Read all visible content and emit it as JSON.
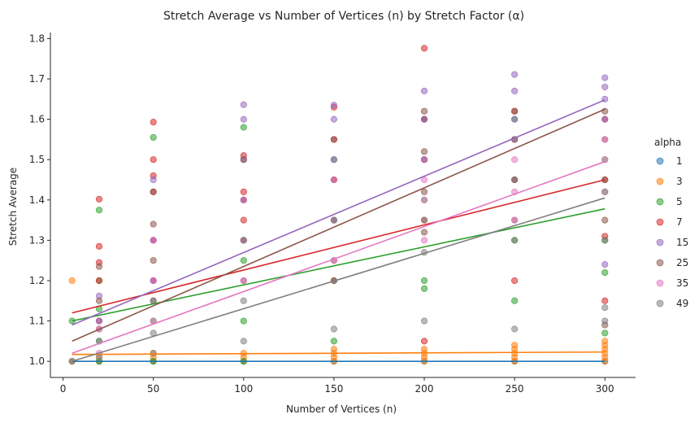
{
  "chart_data": {
    "type": "scatter",
    "title": "Stretch Average vs Number of Vertices (n) by Stretch Factor (α)",
    "xlabel": "Number of Vertices (n)",
    "ylabel": "Stretch Average",
    "xlim": [
      -7,
      317
    ],
    "ylim": [
      0.96,
      1.815
    ],
    "xticks": [
      0,
      50,
      100,
      150,
      200,
      250,
      300
    ],
    "yticks": [
      1.0,
      1.1,
      1.2,
      1.3,
      1.4,
      1.5,
      1.6,
      1.7,
      1.8
    ],
    "grid": false,
    "legend_title": "alpha",
    "legend_position": "right",
    "x_values": [
      5,
      20,
      50,
      100,
      150,
      200,
      250,
      300
    ],
    "series": [
      {
        "name": "1",
        "color": "#1f77b4",
        "fit": [
          1.0,
          1.0
        ],
        "points": [
          [
            5,
            1.0
          ],
          [
            20,
            1.0
          ],
          [
            50,
            1.0
          ],
          [
            100,
            1.0
          ],
          [
            150,
            1.0
          ],
          [
            200,
            1.0
          ],
          [
            250,
            1.0
          ],
          [
            300,
            1.0
          ]
        ]
      },
      {
        "name": "3",
        "color": "#ff7f0e",
        "fit": [
          1.017,
          1.023
        ],
        "points": [
          [
            5,
            1.2
          ],
          [
            5,
            1.0
          ],
          [
            20,
            1.0
          ],
          [
            20,
            1.01
          ],
          [
            50,
            1.0
          ],
          [
            50,
            1.01
          ],
          [
            50,
            1.02
          ],
          [
            100,
            1.0
          ],
          [
            100,
            1.01
          ],
          [
            100,
            1.02
          ],
          [
            150,
            1.0
          ],
          [
            150,
            1.01
          ],
          [
            150,
            1.02
          ],
          [
            150,
            1.03
          ],
          [
            200,
            1.0
          ],
          [
            200,
            1.01
          ],
          [
            200,
            1.02
          ],
          [
            200,
            1.03
          ],
          [
            250,
            1.0
          ],
          [
            250,
            1.01
          ],
          [
            250,
            1.02
          ],
          [
            250,
            1.03
          ],
          [
            250,
            1.04
          ],
          [
            300,
            1.0
          ],
          [
            300,
            1.01
          ],
          [
            300,
            1.02
          ],
          [
            300,
            1.03
          ],
          [
            300,
            1.04
          ],
          [
            300,
            1.05
          ]
        ]
      },
      {
        "name": "5",
        "color": "#2ca02c",
        "fit": [
          1.1,
          1.378
        ],
        "points": [
          [
            5,
            1.1
          ],
          [
            20,
            1.375
          ],
          [
            20,
            1.2
          ],
          [
            20,
            1.13
          ],
          [
            20,
            1.05
          ],
          [
            20,
            1.0
          ],
          [
            50,
            1.555
          ],
          [
            50,
            1.3
          ],
          [
            50,
            1.2
          ],
          [
            50,
            1.1
          ],
          [
            50,
            1.0
          ],
          [
            100,
            1.58
          ],
          [
            100,
            1.4
          ],
          [
            100,
            1.25
          ],
          [
            100,
            1.1
          ],
          [
            100,
            1.0
          ],
          [
            150,
            1.5
          ],
          [
            150,
            1.35
          ],
          [
            150,
            1.2
          ],
          [
            150,
            1.05
          ],
          [
            200,
            1.6
          ],
          [
            200,
            1.4
          ],
          [
            200,
            1.2
          ],
          [
            200,
            1.18
          ],
          [
            250,
            1.6
          ],
          [
            250,
            1.3
          ],
          [
            250,
            1.15
          ],
          [
            300,
            1.5
          ],
          [
            300,
            1.3
          ],
          [
            300,
            1.22
          ],
          [
            300,
            1.07
          ]
        ]
      },
      {
        "name": "7",
        "color": "#d62728",
        "fit": [
          1.12,
          1.45
        ],
        "points": [
          [
            20,
            1.402
          ],
          [
            20,
            1.285
          ],
          [
            20,
            1.245
          ],
          [
            20,
            1.2
          ],
          [
            20,
            1.1
          ],
          [
            50,
            1.593
          ],
          [
            50,
            1.5
          ],
          [
            50,
            1.46
          ],
          [
            50,
            1.42
          ],
          [
            50,
            1.3
          ],
          [
            50,
            1.2
          ],
          [
            100,
            1.51
          ],
          [
            100,
            1.42
          ],
          [
            100,
            1.35
          ],
          [
            100,
            1.3
          ],
          [
            150,
            1.63
          ],
          [
            150,
            1.55
          ],
          [
            150,
            1.45
          ],
          [
            150,
            1.2
          ],
          [
            200,
            1.776
          ],
          [
            200,
            1.6
          ],
          [
            200,
            1.5
          ],
          [
            200,
            1.35
          ],
          [
            200,
            1.05
          ],
          [
            250,
            1.62
          ],
          [
            250,
            1.45
          ],
          [
            250,
            1.2
          ],
          [
            300,
            1.6
          ],
          [
            300,
            1.45
          ],
          [
            300,
            1.31
          ],
          [
            300,
            1.15
          ]
        ]
      },
      {
        "name": "15",
        "color": "#9467bd",
        "fit": [
          1.09,
          1.648
        ],
        "points": [
          [
            20,
            1.162
          ],
          [
            20,
            1.1
          ],
          [
            50,
            1.45
          ],
          [
            50,
            1.3
          ],
          [
            50,
            1.2
          ],
          [
            100,
            1.636
          ],
          [
            100,
            1.6
          ],
          [
            100,
            1.5
          ],
          [
            100,
            1.4
          ],
          [
            150,
            1.635
          ],
          [
            150,
            1.6
          ],
          [
            150,
            1.5
          ],
          [
            200,
            1.67
          ],
          [
            200,
            1.6
          ],
          [
            200,
            1.5
          ],
          [
            250,
            1.711
          ],
          [
            250,
            1.67
          ],
          [
            250,
            1.6
          ],
          [
            250,
            1.55
          ],
          [
            300,
            1.703
          ],
          [
            300,
            1.68
          ],
          [
            300,
            1.65
          ],
          [
            300,
            1.6
          ],
          [
            300,
            1.24
          ]
        ]
      },
      {
        "name": "25",
        "color": "#8c564b",
        "fit": [
          1.05,
          1.625
        ],
        "points": [
          [
            20,
            1.235
          ],
          [
            20,
            1.15
          ],
          [
            20,
            1.08
          ],
          [
            50,
            1.42
          ],
          [
            50,
            1.34
          ],
          [
            50,
            1.25
          ],
          [
            50,
            1.15
          ],
          [
            100,
            1.5
          ],
          [
            100,
            1.4
          ],
          [
            100,
            1.3
          ],
          [
            100,
            1.2
          ],
          [
            150,
            1.55
          ],
          [
            150,
            1.45
          ],
          [
            150,
            1.35
          ],
          [
            150,
            1.25
          ],
          [
            200,
            1.62
          ],
          [
            200,
            1.52
          ],
          [
            200,
            1.42
          ],
          [
            200,
            1.32
          ],
          [
            250,
            1.62
          ],
          [
            250,
            1.55
          ],
          [
            250,
            1.45
          ],
          [
            250,
            1.35
          ],
          [
            300,
            1.62
          ],
          [
            300,
            1.55
          ],
          [
            300,
            1.45
          ],
          [
            300,
            1.35
          ],
          [
            300,
            1.09
          ]
        ]
      },
      {
        "name": "35",
        "color": "#e377c2",
        "fit": [
          1.02,
          1.495
        ],
        "points": [
          [
            20,
            1.08
          ],
          [
            20,
            1.02
          ],
          [
            50,
            1.3
          ],
          [
            50,
            1.2
          ],
          [
            50,
            1.1
          ],
          [
            100,
            1.4
          ],
          [
            100,
            1.3
          ],
          [
            100,
            1.2
          ],
          [
            150,
            1.45
          ],
          [
            150,
            1.35
          ],
          [
            150,
            1.25
          ],
          [
            200,
            1.45
          ],
          [
            200,
            1.4
          ],
          [
            200,
            1.3
          ],
          [
            250,
            1.5
          ],
          [
            250,
            1.42
          ],
          [
            250,
            1.35
          ],
          [
            300,
            1.55
          ],
          [
            300,
            1.5
          ],
          [
            300,
            1.42
          ]
        ]
      },
      {
        "name": "49",
        "color": "#7f7f7f",
        "fit": [
          1.0,
          1.405
        ],
        "points": [
          [
            5,
            1.0
          ],
          [
            20,
            1.05
          ],
          [
            20,
            1.01
          ],
          [
            50,
            1.15
          ],
          [
            50,
            1.07
          ],
          [
            50,
            1.02
          ],
          [
            100,
            1.3
          ],
          [
            100,
            1.15
          ],
          [
            100,
            1.05
          ],
          [
            150,
            1.35
          ],
          [
            150,
            1.2
          ],
          [
            150,
            1.08
          ],
          [
            200,
            1.35
          ],
          [
            200,
            1.27
          ],
          [
            200,
            1.1
          ],
          [
            250,
            1.45
          ],
          [
            250,
            1.3
          ],
          [
            250,
            1.08
          ],
          [
            300,
            1.42
          ],
          [
            300,
            1.3
          ],
          [
            300,
            1.133
          ],
          [
            300,
            1.1
          ]
        ]
      }
    ]
  }
}
